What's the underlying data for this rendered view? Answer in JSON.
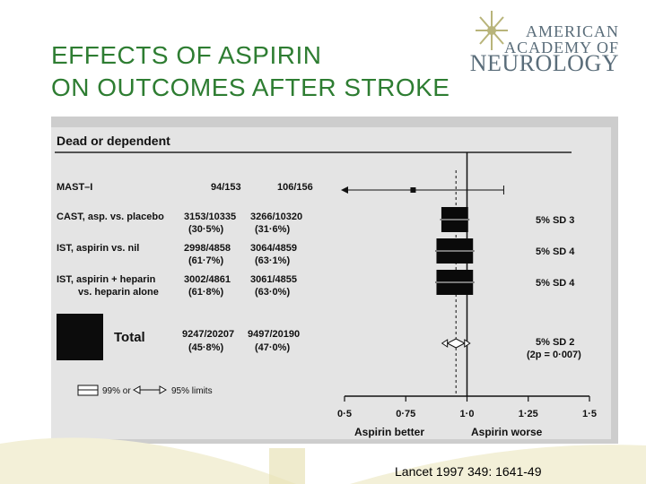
{
  "slide": {
    "title_line1": "EFFECTS OF ASPIRIN",
    "title_line2": "ON OUTCOMES AFTER STROKE",
    "logo": {
      "line1": "AMERICAN",
      "line2": "ACADEMY OF",
      "line3": "NEUROLOGY",
      "icon": "star-burst-icon"
    },
    "citation": "Lancet 1997 349: 1641-49"
  },
  "forest": {
    "heading": "Dead or dependent",
    "x_ticks": [
      "0·5",
      "0·75",
      "1·0",
      "1·25",
      "1·5"
    ],
    "x_left_label": "Aspirin better",
    "x_right_label": "Aspirin worse",
    "legend_ci99": "99% or",
    "legend_ci95": "95% limits",
    "rows": [
      {
        "label": "MAST–I",
        "label2": "",
        "treat": "94/153",
        "treat_pct": "",
        "control": "106/156",
        "control_pct": "",
        "or_est": 0.78,
        "ci95": [
          0.5,
          1.06
        ],
        "ci99": [
          0.5,
          1.15
        ],
        "sd": ""
      },
      {
        "label": "CAST, asp. vs. placebo",
        "label2": "",
        "treat": "3153/10335",
        "treat_pct": "(30·5%)",
        "control": "3266/10320",
        "control_pct": "(31·6%)",
        "or_est": 0.95,
        "ci95": [
          0.91,
          0.99
        ],
        "ci99": [
          0.89,
          1.01
        ],
        "sd": "5% SD 3"
      },
      {
        "label": "IST, aspirin vs. nil",
        "label2": "",
        "treat": "2998/4858",
        "treat_pct": "(61·7%)",
        "control": "3064/4859",
        "control_pct": "(63·1%)",
        "or_est": 0.95,
        "ci95": [
          0.89,
          1.01
        ],
        "ci99": [
          0.87,
          1.03
        ],
        "sd": "5% SD 4"
      },
      {
        "label": "IST, aspirin + heparin",
        "label2": "vs. heparin alone",
        "treat": "3002/4861",
        "treat_pct": "(61·8%)",
        "control": "3061/4855",
        "control_pct": "(63·0%)",
        "or_est": 0.95,
        "ci95": [
          0.89,
          1.01
        ],
        "ci99": [
          0.87,
          1.03
        ],
        "sd": "5% SD 4"
      }
    ],
    "total": {
      "label": "Total",
      "treat": "9247/20207",
      "treat_pct": "(45·8%)",
      "control": "9497/20190",
      "control_pct": "(47·0%)",
      "or_est": 0.955,
      "ci": [
        0.92,
        0.99
      ],
      "sd": "5% SD 2",
      "p": "(2p = 0·007)"
    }
  }
}
